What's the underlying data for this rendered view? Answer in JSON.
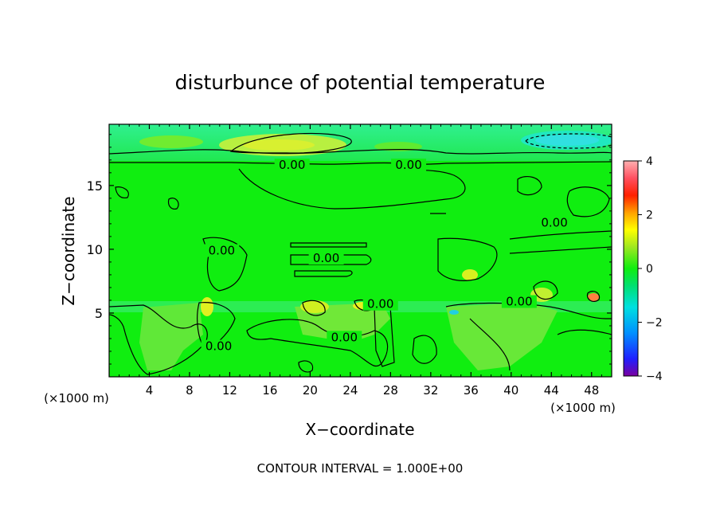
{
  "chart_data": {
    "type": "heatmap",
    "title": "disturbunce of potential temperature",
    "xlabel": "X−coordinate",
    "ylabel": "Z−coordinate",
    "x_unit_left": "(×1000 m)",
    "x_unit_right": "(×1000 m)",
    "footer": "CONTOUR INTERVAL = 1.000E+00",
    "xlim": [
      0,
      50
    ],
    "ylim": [
      0,
      19.8
    ],
    "x_ticks": [
      4,
      8,
      12,
      16,
      20,
      24,
      28,
      32,
      36,
      40,
      44,
      48
    ],
    "y_ticks": [
      5,
      10,
      15
    ],
    "colorbar": {
      "min": -4,
      "max": 4,
      "ticks": [
        -4,
        -2,
        0,
        2,
        4
      ]
    },
    "contour_labels": [
      {
        "text": "0.00",
        "x": 18.2,
        "z": 16.6
      },
      {
        "text": "0.00",
        "x": 29.8,
        "z": 16.6
      },
      {
        "text": "0.00",
        "x": 11.2,
        "z": 9.9
      },
      {
        "text": "0.00",
        "x": 21.6,
        "z": 9.3
      },
      {
        "text": "0.00",
        "x": 44.3,
        "z": 12.1
      },
      {
        "text": "0.00",
        "x": 40.8,
        "z": 5.9
      },
      {
        "text": "0.00",
        "x": 27.0,
        "z": 5.7
      },
      {
        "text": "0.00",
        "x": 23.4,
        "z": 3.1
      },
      {
        "text": "0.00",
        "x": 10.9,
        "z": 2.4
      }
    ]
  }
}
